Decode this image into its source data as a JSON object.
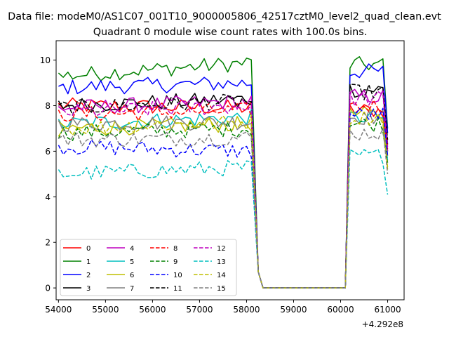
{
  "chart_data": {
    "type": "line",
    "suptitle": "Data file: modeM0/AS1C07_001T10_9000005806_42517cztM0_level2_quad_clean.evt",
    "title": "Quadrant 0 module wise count rates with 100.0s bins.",
    "xlabel": "",
    "ylabel": "",
    "x_offset_label": "+4.292e8",
    "x_ticks": [
      54000,
      55000,
      56000,
      57000,
      58000,
      59000,
      60000,
      61000
    ],
    "y_ticks": [
      0,
      2,
      4,
      6,
      8,
      10
    ],
    "xlim": [
      53950,
      61350
    ],
    "ylim": [
      -0.52,
      10.85
    ],
    "grid": false,
    "legend_position": "lower-left",
    "series_style": [
      {
        "name": "0",
        "color": "#ff0000",
        "dash": "solid"
      },
      {
        "name": "1",
        "color": "#008000",
        "dash": "solid"
      },
      {
        "name": "2",
        "color": "#0000ff",
        "dash": "solid"
      },
      {
        "name": "3",
        "color": "#000000",
        "dash": "solid"
      },
      {
        "name": "4",
        "color": "#bf00bf",
        "dash": "solid"
      },
      {
        "name": "5",
        "color": "#00bfbf",
        "dash": "solid"
      },
      {
        "name": "6",
        "color": "#bfbf00",
        "dash": "solid"
      },
      {
        "name": "7",
        "color": "#808080",
        "dash": "solid"
      },
      {
        "name": "8",
        "color": "#ff0000",
        "dash": "dashed"
      },
      {
        "name": "9",
        "color": "#008000",
        "dash": "dashed"
      },
      {
        "name": "10",
        "color": "#0000ff",
        "dash": "dashed"
      },
      {
        "name": "11",
        "color": "#000000",
        "dash": "dashed"
      },
      {
        "name": "12",
        "color": "#bf00bf",
        "dash": "dashed"
      },
      {
        "name": "13",
        "color": "#00bfbf",
        "dash": "dashed"
      },
      {
        "name": "14",
        "color": "#bfbf00",
        "dash": "dashed"
      },
      {
        "name": "15",
        "color": "#808080",
        "dash": "dashed"
      }
    ],
    "x_segments": {
      "active1": {
        "start": 54000,
        "step": 100,
        "count": 42
      },
      "gap": [
        58250,
        58350,
        60100
      ],
      "active2": {
        "start": 60200,
        "step": 100,
        "count": 9
      }
    },
    "series_levels": [
      {
        "name": "0",
        "first": 8.0,
        "second": 7.8,
        "first_end": 7.9,
        "second_end": 6.0
      },
      {
        "name": "1",
        "first": 9.3,
        "second": 9.8,
        "first_end": 9.9,
        "second_end": 7.0
      },
      {
        "name": "2",
        "first": 8.8,
        "second": 9.5,
        "first_end": 9.0,
        "second_end": 6.8
      },
      {
        "name": "3",
        "first": 8.0,
        "second": 8.7,
        "first_end": 8.3,
        "second_end": 6.3
      },
      {
        "name": "4",
        "first": 7.9,
        "second": 8.4,
        "first_end": 8.2,
        "second_end": 6.0
      },
      {
        "name": "5",
        "first": 7.2,
        "second": 7.5,
        "first_end": 7.5,
        "second_end": 5.6
      },
      {
        "name": "6",
        "first": 7.0,
        "second": 7.6,
        "first_end": 7.2,
        "second_end": 5.2
      },
      {
        "name": "7",
        "first": 7.2,
        "second": 7.5,
        "first_end": 7.3,
        "second_end": 5.8
      },
      {
        "name": "8",
        "first": 7.6,
        "second": 8.0,
        "first_end": 7.8,
        "second_end": 6.1
      },
      {
        "name": "9",
        "first": 6.8,
        "second": 7.2,
        "first_end": 7.0,
        "second_end": 5.5
      },
      {
        "name": "10",
        "first": 6.2,
        "second": 7.6,
        "first_end": 6.0,
        "second_end": 5.8
      },
      {
        "name": "11",
        "first": 7.9,
        "second": 8.6,
        "first_end": 8.2,
        "second_end": 6.5
      },
      {
        "name": "12",
        "first": 7.7,
        "second": 8.3,
        "first_end": 8.0,
        "second_end": 6.2
      },
      {
        "name": "13",
        "first": 5.0,
        "second": 5.8,
        "first_end": 5.3,
        "second_end": 4.1
      },
      {
        "name": "14",
        "first": 7.0,
        "second": 7.5,
        "first_end": 7.3,
        "second_end": 5.3
      },
      {
        "name": "15",
        "first": 6.5,
        "second": 6.8,
        "first_end": 6.6,
        "second_end": 5.0
      }
    ],
    "noise_amplitude": 0.35,
    "gap_value": 0.0,
    "transition_value": 0.7
  }
}
